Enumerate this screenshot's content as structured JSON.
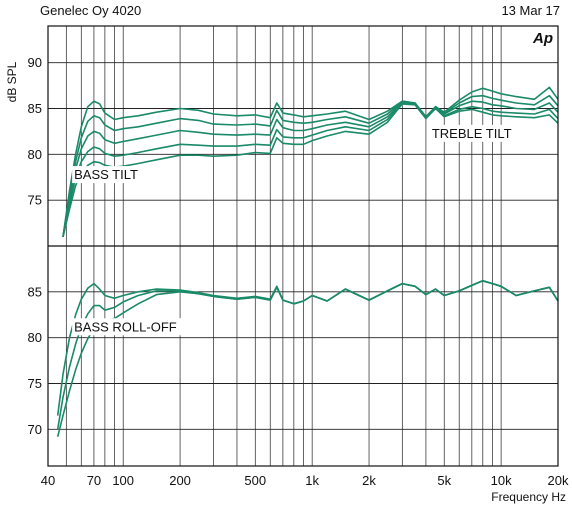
{
  "header": {
    "left": "Genelec Oy 4020",
    "right": "13 Mar 17"
  },
  "ap_logo": "Ap",
  "chart_data": {
    "type": "line",
    "xscale": "log",
    "xlabel": "Frequency Hz",
    "ylabel": "dB SPL",
    "xlim": [
      40,
      20000
    ],
    "x_tick_labels": [
      {
        "v": 40,
        "t": "40"
      },
      {
        "v": 70,
        "t": "70"
      },
      {
        "v": 100,
        "t": "100"
      },
      {
        "v": 200,
        "t": "200"
      },
      {
        "v": 500,
        "t": "500"
      },
      {
        "v": 1000,
        "t": "1k"
      },
      {
        "v": 2000,
        "t": "2k"
      },
      {
        "v": 5000,
        "t": "5k"
      },
      {
        "v": 10000,
        "t": "10k"
      },
      {
        "v": 20000,
        "t": "20k"
      }
    ],
    "grid": true,
    "line_color": "#1a8a68",
    "panels": [
      {
        "annotations": [
          {
            "text": "BASS TILT",
            "x": 55,
            "y": 77.3
          },
          {
            "text": "TREBLE TILT",
            "x": 4300,
            "y": 81.8
          }
        ],
        "ylim": [
          70,
          94
        ],
        "yticks": [
          75,
          80,
          85,
          90
        ],
        "series": [
          {
            "x": [
              48,
              52,
              56,
              60,
              65,
              70,
              75,
              80,
              90,
              100,
              120,
              150,
              200,
              250,
              300,
              400,
              500,
              600,
              650,
              700,
              800,
              900,
              1000,
              1200,
              1500,
              2000,
              2500,
              3000,
              3500,
              4000,
              4500,
              5000,
              6000,
              7000,
              8000,
              9000,
              10000,
              12000,
              15000,
              18000,
              20000
            ],
            "y": [
              71,
              76,
              80,
              83,
              85.2,
              85.8,
              85.5,
              84.5,
              83.8,
              84,
              84.2,
              84.6,
              85,
              84.8,
              84.4,
              84.2,
              84.3,
              84,
              85.6,
              84.5,
              84.3,
              84.1,
              84.2,
              84.4,
              84.7,
              83.8,
              84.7,
              85.8,
              85.6,
              84.1,
              85.2,
              84.6,
              85.9,
              86.8,
              87.2,
              86.9,
              86.6,
              86.3,
              86,
              87.3,
              86
            ]
          },
          {
            "x": [
              48,
              52,
              56,
              60,
              65,
              70,
              75,
              80,
              90,
              100,
              120,
              150,
              200,
              250,
              300,
              400,
              500,
              600,
              650,
              700,
              800,
              900,
              1000,
              1200,
              1500,
              2000,
              2500,
              3000,
              3500,
              4000,
              4500,
              5000,
              6000,
              7000,
              8000,
              9000,
              10000,
              12000,
              15000,
              18000,
              20000
            ],
            "y": [
              71,
              75.5,
              79.2,
              81.8,
              83.6,
              84.2,
              84,
              83.2,
              82.6,
              82.8,
              83,
              83.4,
              83.9,
              83.7,
              83.3,
              83.2,
              83.3,
              83.1,
              84.8,
              83.7,
              83.5,
              83.4,
              83.5,
              83.8,
              84.1,
              83.4,
              84.4,
              85.8,
              85.6,
              84.1,
              85.2,
              84.5,
              85.6,
              86.3,
              86.4,
              86.1,
              85.9,
              85.6,
              85.4,
              86.4,
              85.3
            ]
          },
          {
            "x": [
              48,
              52,
              56,
              60,
              65,
              70,
              75,
              80,
              90,
              100,
              120,
              150,
              200,
              250,
              300,
              400,
              500,
              600,
              650,
              700,
              800,
              900,
              1000,
              1200,
              1500,
              2000,
              2500,
              3000,
              3500,
              4000,
              4500,
              5000,
              6000,
              7000,
              8000,
              9000,
              10000,
              12000,
              15000,
              18000,
              20000
            ],
            "y": [
              71,
              75,
              78.4,
              80.6,
              82,
              82.5,
              82.3,
              81.6,
              81.2,
              81.4,
              81.7,
              82.1,
              82.6,
              82.4,
              82.2,
              82.1,
              82.2,
              82.1,
              83.8,
              82.9,
              82.6,
              82.6,
              82.8,
              83.2,
              83.5,
              83,
              84.1,
              85.7,
              85.5,
              84,
              85.1,
              84.4,
              85.3,
              85.8,
              85.7,
              85.4,
              85.3,
              85,
              84.9,
              85.6,
              84.6
            ]
          },
          {
            "x": [
              48,
              52,
              56,
              60,
              65,
              70,
              75,
              80,
              90,
              100,
              120,
              150,
              200,
              250,
              300,
              400,
              500,
              600,
              650,
              700,
              800,
              900,
              1000,
              1200,
              1500,
              2000,
              2500,
              3000,
              3500,
              4000,
              4500,
              5000,
              6000,
              7000,
              8000,
              9000,
              10000,
              12000,
              15000,
              18000,
              20000
            ],
            "y": [
              71,
              74.5,
              77.5,
              79.2,
              80.3,
              80.8,
              80.6,
              80.1,
              79.8,
              79.9,
              80.2,
              80.6,
              81.1,
              81,
              80.9,
              80.9,
              81.1,
              81,
              82.7,
              81.9,
              81.8,
              81.8,
              82.1,
              82.6,
              83,
              82.6,
              83.8,
              85.6,
              85.5,
              84,
              85,
              84.2,
              84.9,
              85.2,
              85,
              84.7,
              84.6,
              84.5,
              84.4,
              84.9,
              83.9
            ]
          },
          {
            "x": [
              48,
              52,
              56,
              60,
              65,
              70,
              75,
              80,
              90,
              100,
              120,
              150,
              200,
              250,
              300,
              400,
              500,
              600,
              650,
              700,
              800,
              900,
              1000,
              1200,
              1500,
              2000,
              2500,
              3000,
              3500,
              4000,
              4500,
              5000,
              6000,
              7000,
              8000,
              9000,
              10000,
              12000,
              15000,
              18000,
              20000
            ],
            "y": [
              71,
              74,
              76.6,
              78,
              78.8,
              79.2,
              79.1,
              78.8,
              78.6,
              78.7,
              79,
              79.4,
              79.9,
              79.9,
              79.8,
              79.9,
              80.2,
              80.1,
              81.8,
              81.2,
              81.1,
              81.1,
              81.5,
              82,
              82.5,
              82.2,
              83.5,
              85.5,
              85.4,
              83.9,
              85,
              84.1,
              84.7,
              84.9,
              84.6,
              84.3,
              84.2,
              84.1,
              84,
              84.3,
              83.4
            ]
          }
        ]
      },
      {
        "annotations": [
          {
            "text": "BASS ROLL-OFF",
            "x": 55,
            "y": 80.7
          }
        ],
        "ylim": [
          66,
          90
        ],
        "yticks": [
          70,
          75,
          80,
          85
        ],
        "series": [
          {
            "x": [
              45,
              48,
              52,
              56,
              60,
              65,
              70,
              75,
              80,
              90,
              100,
              120,
              150,
              200,
              250,
              300,
              400,
              500,
              600,
              650,
              700,
              800,
              900,
              1000,
              1200,
              1500,
              2000,
              2500,
              3000,
              3500,
              4000,
              4500,
              5000,
              6000,
              7000,
              8000,
              9000,
              10000,
              12000,
              15000,
              18000,
              20000
            ],
            "y": [
              71.5,
              76,
              80,
              82.5,
              84.2,
              85.4,
              85.9,
              85.3,
              84.6,
              84.3,
              84.6,
              85,
              85.3,
              85.2,
              84.9,
              84.6,
              84.3,
              84.5,
              84.2,
              85.6,
              84.1,
              83.7,
              84,
              84.6,
              84,
              85.3,
              84.1,
              85.1,
              85.9,
              85.6,
              84.7,
              85.3,
              84.6,
              85.1,
              85.7,
              86.2,
              85.9,
              85.6,
              84.6,
              85.1,
              85.5,
              84
            ]
          },
          {
            "x": [
              45,
              48,
              52,
              56,
              60,
              65,
              70,
              75,
              80,
              90,
              100,
              120,
              150,
              200,
              250,
              300,
              400,
              500,
              600,
              650,
              700,
              800,
              900,
              1000,
              1200,
              1500,
              2000,
              2500,
              3000,
              3500,
              4000,
              4500,
              5000,
              6000,
              7000,
              8000,
              9000,
              10000,
              12000,
              15000,
              18000,
              20000
            ],
            "y": [
              70,
              73.5,
              76.8,
              79.3,
              81.2,
              82.6,
              83.5,
              83.5,
              83,
              83.3,
              83.9,
              84.6,
              85.1,
              85.1,
              84.8,
              84.5,
              84.2,
              84.4,
              84.1,
              85.5,
              84.1,
              83.7,
              84,
              84.6,
              84,
              85.3,
              84.1,
              85.1,
              85.9,
              85.6,
              84.7,
              85.3,
              84.6,
              85.1,
              85.7,
              86.2,
              85.9,
              85.6,
              84.6,
              85.1,
              85.5,
              84
            ]
          },
          {
            "x": [
              45,
              48,
              52,
              56,
              60,
              65,
              70,
              75,
              80,
              90,
              100,
              120,
              150,
              200,
              250,
              300,
              400,
              500,
              600,
              650,
              700,
              800,
              900,
              1000,
              1200,
              1500,
              2000,
              2500,
              3000,
              3500,
              4000,
              4500,
              5000,
              6000,
              7000,
              8000,
              9000,
              10000,
              12000,
              15000,
              18000,
              20000
            ],
            "y": [
              69.2,
              71.5,
              74.2,
              76.5,
              78.3,
              79.9,
              81,
              81.6,
              81.8,
              82.1,
              82.7,
              83.7,
              84.7,
              85,
              84.8,
              84.5,
              84.2,
              84.4,
              84.1,
              85.5,
              84.1,
              83.7,
              84,
              84.6,
              84,
              85.3,
              84.1,
              85.1,
              85.9,
              85.6,
              84.7,
              85.3,
              84.6,
              85.1,
              85.7,
              86.2,
              85.9,
              85.6,
              84.6,
              85.1,
              85.5,
              84
            ]
          }
        ]
      }
    ]
  }
}
